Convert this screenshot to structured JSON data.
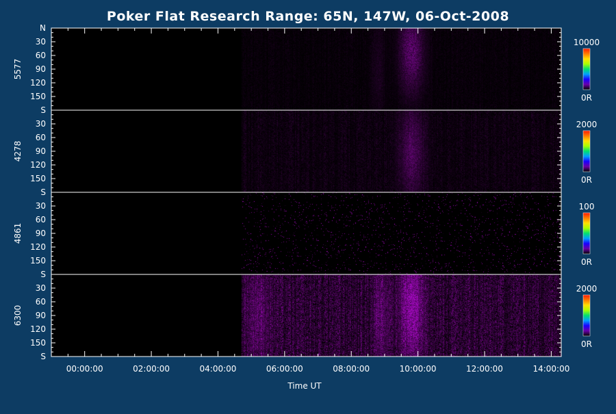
{
  "chart_data": {
    "type": "heatmap",
    "title": "Poker Flat Research Range: 65N, 147W, 06-Oct-2008",
    "xlabel": "Time UT",
    "x_tick_labels": [
      "00:00:00",
      "02:00:00",
      "04:00:00",
      "06:00:00",
      "08:00:00",
      "10:00:00",
      "12:00:00",
      "14:00:00"
    ],
    "x_range_hours": [
      -1.0,
      14.3
    ],
    "y_tick_labels": [
      "N",
      "30",
      "60",
      "90",
      "120",
      "150",
      "S"
    ],
    "y_range_deg": [
      0,
      180
    ],
    "colormap": "rainbow",
    "panels": [
      {
        "name": "5577",
        "colorbar_max_label": "10000",
        "colorbar_min_label": "0R",
        "data_start_hour": 4.7,
        "noise_level": 0.09,
        "enhancements": [
          {
            "center_hour": 9.8,
            "width_hours": 0.35,
            "peak": 0.45,
            "center_deg": 50,
            "spread_deg": 90
          },
          {
            "center_hour": 8.8,
            "width_hours": 0.2,
            "peak": 0.1,
            "center_deg": 90,
            "spread_deg": 110
          }
        ]
      },
      {
        "name": "4278",
        "colorbar_max_label": "2000",
        "colorbar_min_label": "0R",
        "data_start_hour": 4.7,
        "noise_level": 0.16,
        "enhancements": [
          {
            "center_hour": 9.8,
            "width_hours": 0.35,
            "peak": 0.35,
            "center_deg": 90,
            "spread_deg": 100
          }
        ]
      },
      {
        "name": "4861",
        "colorbar_max_label": "100",
        "colorbar_min_label": "0R",
        "data_start_hour": 4.7,
        "noise_level": 0.5,
        "sparse": true,
        "enhancements": []
      },
      {
        "name": "6300",
        "colorbar_max_label": "2000",
        "colorbar_min_label": "0R",
        "data_start_hour": 4.7,
        "noise_level": 0.5,
        "enhancements": [
          {
            "center_hour": 9.8,
            "width_hours": 0.35,
            "peak": 0.55,
            "center_deg": 70,
            "spread_deg": 120
          },
          {
            "center_hour": 8.9,
            "width_hours": 0.25,
            "peak": 0.3,
            "center_deg": 90,
            "spread_deg": 120
          },
          {
            "center_hour": 5.2,
            "width_hours": 0.4,
            "peak": 0.25,
            "center_deg": 90,
            "spread_deg": 120
          }
        ]
      }
    ]
  }
}
